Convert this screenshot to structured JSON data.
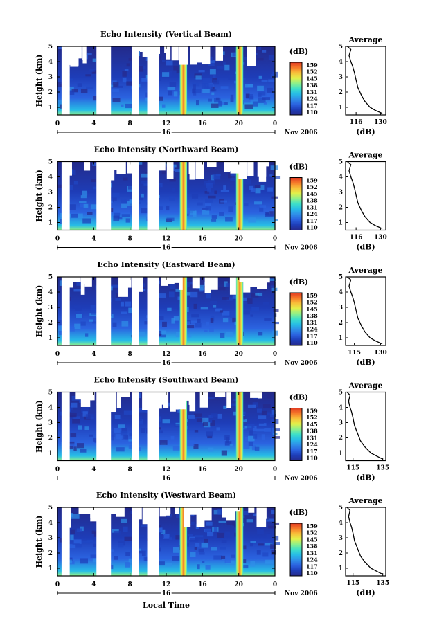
{
  "figure": {
    "shared_xlabel": "Local Time",
    "date_label": "Nov 2006",
    "day_label": "16",
    "average_title": "Average",
    "average_xlabel": "(dB)",
    "colorbar_unit": "(dB)",
    "colorbar_ticks": [
      "159",
      "152",
      "145",
      "138",
      "131",
      "124",
      "117",
      "110"
    ],
    "colormap": [
      "#262a8c",
      "#1e3db8",
      "#2b63e0",
      "#2f8fe8",
      "#27bde6",
      "#3ee0c8",
      "#8ef08a",
      "#e2f04a",
      "#f8c03a",
      "#f77a2a",
      "#e23a22"
    ]
  },
  "chart_data": [
    {
      "type": "heatmap",
      "title": "Echo Intensity (Vertical Beam)",
      "xlabel": "",
      "ylabel": "Height (km)",
      "xlim": [
        0,
        24
      ],
      "ylim": [
        0.5,
        5
      ],
      "xticks": [
        "0",
        "4",
        "8",
        "12",
        "16",
        "20",
        "0"
      ],
      "yticks": [
        "1",
        "2",
        "3",
        "4",
        "5"
      ],
      "colorbar": {
        "label": "(dB)",
        "range": [
          110,
          159
        ]
      },
      "data_gaps_hours": [
        [
          0.45,
          1.35
        ],
        [
          4.3,
          5.9
        ],
        [
          8.2,
          9.0
        ],
        [
          9.9,
          11.2
        ]
      ],
      "high_echo_bands_hours": [
        [
          13.5,
          14.3
        ],
        [
          19.7,
          20.5
        ]
      ],
      "average_profile": {
        "xlim": [
          110,
          133
        ],
        "xticks": [
          "116",
          "130"
        ],
        "yticks": [
          "1",
          "2",
          "3",
          "4",
          "5"
        ],
        "x": [
          111,
          113,
          112,
          113,
          114,
          115,
          116,
          117,
          119,
          121,
          124,
          127,
          131
        ],
        "y": [
          5.0,
          4.8,
          4.4,
          4.0,
          3.7,
          3.3,
          2.8,
          2.3,
          1.8,
          1.4,
          1.0,
          0.8,
          0.6
        ]
      }
    },
    {
      "type": "heatmap",
      "title": "Echo Intensity (Northward Beam)",
      "xlabel": "",
      "ylabel": "Height (km)",
      "xlim": [
        0,
        24
      ],
      "ylim": [
        0.5,
        5
      ],
      "xticks": [
        "0",
        "4",
        "8",
        "12",
        "16",
        "20",
        "0"
      ],
      "yticks": [
        "1",
        "2",
        "3",
        "4",
        "5"
      ],
      "colorbar": {
        "label": "(dB)",
        "range": [
          110,
          159
        ]
      },
      "data_gaps_hours": [
        [
          0.45,
          1.35
        ],
        [
          4.3,
          5.9
        ],
        [
          8.2,
          9.0
        ],
        [
          9.9,
          11.2
        ]
      ],
      "high_echo_bands_hours": [
        [
          13.5,
          14.3
        ],
        [
          19.7,
          20.5
        ]
      ],
      "average_profile": {
        "xlim": [
          110,
          133
        ],
        "xticks": [
          "116",
          "130"
        ],
        "yticks": [
          "1",
          "2",
          "3",
          "4",
          "5"
        ],
        "x": [
          111,
          113,
          112,
          113,
          114,
          115,
          116,
          117,
          119,
          121,
          124,
          127,
          131
        ],
        "y": [
          5.0,
          4.8,
          4.4,
          4.0,
          3.7,
          3.3,
          2.8,
          2.3,
          1.8,
          1.4,
          1.0,
          0.8,
          0.6
        ]
      }
    },
    {
      "type": "heatmap",
      "title": "Echo Intensity (Eastward Beam)",
      "xlabel": "",
      "ylabel": "Height (km)",
      "xlim": [
        0,
        24
      ],
      "ylim": [
        0.5,
        5
      ],
      "xticks": [
        "0",
        "4",
        "8",
        "12",
        "16",
        "20",
        "0"
      ],
      "yticks": [
        "1",
        "2",
        "3",
        "4",
        "5"
      ],
      "colorbar": {
        "label": "(dB)",
        "range": [
          110,
          159
        ]
      },
      "data_gaps_hours": [
        [
          0.45,
          1.35
        ],
        [
          4.3,
          5.9
        ],
        [
          8.2,
          9.0
        ],
        [
          9.9,
          11.2
        ]
      ],
      "high_echo_bands_hours": [
        [
          13.5,
          14.3
        ],
        [
          19.7,
          20.5
        ]
      ],
      "average_profile": {
        "xlim": [
          110,
          133
        ],
        "xticks": [
          "115",
          "130"
        ],
        "yticks": [
          "1",
          "2",
          "3",
          "4",
          "5"
        ],
        "x": [
          111,
          113,
          112,
          113,
          114,
          115,
          116,
          117,
          119,
          121,
          124,
          127,
          131
        ],
        "y": [
          5.0,
          4.8,
          4.4,
          4.0,
          3.7,
          3.3,
          2.8,
          2.3,
          1.8,
          1.4,
          1.0,
          0.8,
          0.6
        ]
      }
    },
    {
      "type": "heatmap",
      "title": "Echo Intensity (Southward Beam)",
      "xlabel": "",
      "ylabel": "Height (km)",
      "xlim": [
        0,
        24
      ],
      "ylim": [
        0.5,
        5
      ],
      "xticks": [
        "0",
        "4",
        "8",
        "12",
        "16",
        "20",
        "0"
      ],
      "yticks": [
        "1",
        "2",
        "3",
        "4",
        "5"
      ],
      "colorbar": {
        "label": "(dB)",
        "range": [
          110,
          159
        ]
      },
      "data_gaps_hours": [
        [
          0.45,
          1.35
        ],
        [
          4.3,
          5.9
        ],
        [
          8.2,
          9.0
        ],
        [
          9.9,
          11.2
        ]
      ],
      "high_echo_bands_hours": [
        [
          13.5,
          14.3
        ],
        [
          19.7,
          20.5
        ]
      ],
      "average_profile": {
        "xlim": [
          110,
          137
        ],
        "xticks": [
          "115",
          "135"
        ],
        "yticks": [
          "1",
          "2",
          "3",
          "4",
          "5"
        ],
        "x": [
          111,
          113,
          112,
          113,
          114,
          115,
          116,
          118,
          120,
          123,
          127,
          131,
          135
        ],
        "y": [
          5.0,
          4.8,
          4.4,
          4.0,
          3.7,
          3.3,
          2.8,
          2.3,
          1.8,
          1.4,
          1.0,
          0.8,
          0.6
        ]
      }
    },
    {
      "type": "heatmap",
      "title": "Echo Intensity (Westward Beam)",
      "xlabel": "Local Time",
      "ylabel": "Height (km)",
      "xlim": [
        0,
        24
      ],
      "ylim": [
        0.5,
        5
      ],
      "xticks": [
        "0",
        "4",
        "8",
        "12",
        "16",
        "20",
        "0"
      ],
      "yticks": [
        "1",
        "2",
        "3",
        "4",
        "5"
      ],
      "colorbar": {
        "label": "(dB)",
        "range": [
          110,
          159
        ]
      },
      "data_gaps_hours": [
        [
          0.45,
          1.35
        ],
        [
          4.3,
          5.9
        ],
        [
          8.2,
          9.0
        ],
        [
          9.9,
          11.2
        ]
      ],
      "high_echo_bands_hours": [
        [
          13.5,
          14.3
        ],
        [
          19.7,
          20.5
        ]
      ],
      "average_profile": {
        "xlim": [
          110,
          137
        ],
        "xticks": [
          "115",
          "135"
        ],
        "yticks": [
          "1",
          "2",
          "3",
          "4",
          "5"
        ],
        "x": [
          111,
          113,
          112,
          113,
          114,
          115,
          116,
          118,
          120,
          123,
          127,
          131,
          135
        ],
        "y": [
          5.0,
          4.8,
          4.4,
          4.0,
          3.7,
          3.3,
          2.8,
          2.3,
          1.8,
          1.4,
          1.0,
          0.8,
          0.6
        ]
      }
    }
  ]
}
